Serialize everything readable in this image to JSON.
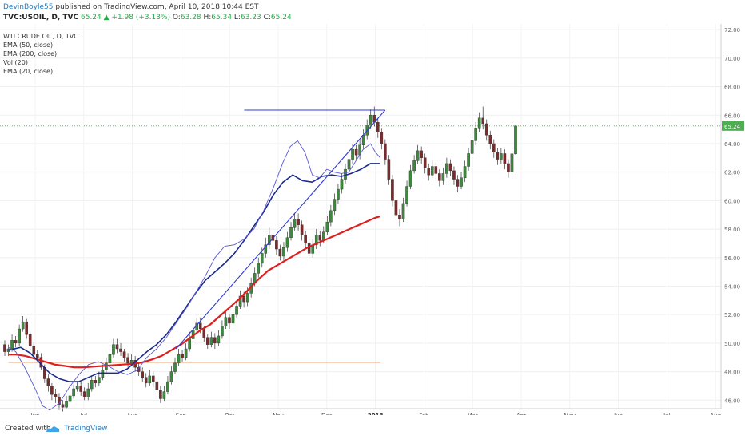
{
  "header": {
    "author": "DevinBoyle55",
    "published": " published on TradingView.com, April 10, 2018 10:44 EST",
    "symbol": "TVC:USOIL, D, TVC",
    "price": " 65.24",
    "change": " ▲ +1.98 (+3.13%)",
    "o_label": " O:",
    "o_value": "63.28",
    "h_label": " H:",
    "h_value": "65.34",
    "l_label": " L:",
    "l_value": "63.23",
    "c_label": " C:",
    "c_value": "65.24"
  },
  "legend": {
    "title": "WTI CRUDE OIL, D, TVC",
    "items": [
      "EMA (50, close)",
      "EMA (200, close)",
      "Vol (20)",
      "EMA (20, close)"
    ]
  },
  "footer": {
    "created": "Created with",
    "brand": "TradingView"
  },
  "colors": {
    "up": "#3c8b3c",
    "down": "#7a2b2b",
    "ema20": "#5a5ad0",
    "ema50": "#1a2b8c",
    "ema200": "#dd1f1f",
    "trend": "#2f3bd6",
    "horizontal_orange": "#f0a070",
    "price_label": "#4caf50"
  },
  "chart_data": {
    "type": "candlestick",
    "title": "WTI CRUDE OIL, D, TVC",
    "x_labels": [
      "Jun",
      "Jul",
      "Aug",
      "Sep",
      "Oct",
      "Nov",
      "Dec",
      "2018",
      "Feb",
      "Mar",
      "Apr",
      "May",
      "Jun",
      "Jul",
      "Aug"
    ],
    "y_labels": [
      "72.00",
      "70.00",
      "68.00",
      "66.00",
      "64.00",
      "62.00",
      "60.00",
      "58.00",
      "56.00",
      "54.00",
      "52.00",
      "50.00",
      "48.00",
      "46.00"
    ],
    "ylim": [
      45.4,
      72.4
    ],
    "last_price": "65.24",
    "ema20": [
      [
        -0.55,
        49.7
      ],
      [
        -0.4,
        49.4
      ],
      [
        -0.2,
        48.2
      ],
      [
        0.0,
        46.8
      ],
      [
        0.15,
        45.6
      ],
      [
        0.3,
        45.3
      ],
      [
        0.5,
        45.8
      ],
      [
        0.7,
        46.9
      ],
      [
        0.9,
        47.8
      ],
      [
        1.1,
        48.5
      ],
      [
        1.3,
        48.7
      ],
      [
        1.5,
        48.4
      ],
      [
        1.7,
        48.0
      ],
      [
        1.9,
        47.8
      ],
      [
        2.1,
        48.1
      ],
      [
        2.3,
        49.0
      ],
      [
        2.5,
        49.6
      ],
      [
        2.7,
        50.4
      ],
      [
        2.9,
        51.4
      ],
      [
        3.1,
        52.4
      ],
      [
        3.3,
        53.5
      ],
      [
        3.5,
        54.7
      ],
      [
        3.7,
        56.0
      ],
      [
        3.9,
        56.8
      ],
      [
        4.1,
        56.9
      ],
      [
        4.3,
        57.3
      ],
      [
        4.5,
        58.0
      ],
      [
        4.7,
        59.3
      ],
      [
        4.9,
        60.9
      ],
      [
        5.1,
        62.7
      ],
      [
        5.25,
        63.8
      ],
      [
        5.4,
        64.2
      ],
      [
        5.55,
        63.4
      ],
      [
        5.7,
        61.8
      ],
      [
        5.85,
        61.6
      ],
      [
        6.0,
        62.2
      ],
      [
        6.15,
        62.0
      ],
      [
        6.3,
        61.9
      ],
      [
        6.45,
        62.0
      ],
      [
        6.6,
        62.8
      ],
      [
        6.75,
        63.6
      ],
      [
        6.9,
        64.0
      ],
      [
        7.0,
        63.4
      ],
      [
        7.1,
        63.0
      ]
    ],
    "ema50": [
      [
        -0.55,
        49.5
      ],
      [
        -0.3,
        49.7
      ],
      [
        -0.1,
        49.3
      ],
      [
        0.1,
        48.6
      ],
      [
        0.3,
        47.9
      ],
      [
        0.5,
        47.5
      ],
      [
        0.7,
        47.3
      ],
      [
        0.9,
        47.3
      ],
      [
        1.1,
        47.6
      ],
      [
        1.3,
        47.9
      ],
      [
        1.5,
        47.9
      ],
      [
        1.7,
        47.9
      ],
      [
        1.9,
        48.2
      ],
      [
        2.1,
        48.8
      ],
      [
        2.3,
        49.4
      ],
      [
        2.5,
        49.9
      ],
      [
        2.7,
        50.6
      ],
      [
        2.9,
        51.5
      ],
      [
        3.1,
        52.5
      ],
      [
        3.3,
        53.5
      ],
      [
        3.5,
        54.4
      ],
      [
        3.7,
        55.0
      ],
      [
        3.9,
        55.6
      ],
      [
        4.1,
        56.3
      ],
      [
        4.3,
        57.2
      ],
      [
        4.5,
        58.2
      ],
      [
        4.7,
        59.2
      ],
      [
        4.9,
        60.4
      ],
      [
        5.1,
        61.3
      ],
      [
        5.3,
        61.8
      ],
      [
        5.5,
        61.4
      ],
      [
        5.7,
        61.3
      ],
      [
        5.9,
        61.7
      ],
      [
        6.1,
        61.8
      ],
      [
        6.3,
        61.7
      ],
      [
        6.5,
        61.9
      ],
      [
        6.7,
        62.2
      ],
      [
        6.9,
        62.6
      ],
      [
        7.1,
        62.6
      ]
    ],
    "ema200": [
      [
        -0.55,
        49.2
      ],
      [
        -0.4,
        49.2
      ],
      [
        -0.2,
        49.1
      ],
      [
        0.0,
        48.9
      ],
      [
        0.2,
        48.7
      ],
      [
        0.4,
        48.5
      ],
      [
        0.6,
        48.4
      ],
      [
        0.8,
        48.3
      ],
      [
        1.0,
        48.3
      ],
      [
        1.2,
        48.35
      ],
      [
        1.4,
        48.4
      ],
      [
        1.6,
        48.45
      ],
      [
        1.8,
        48.5
      ],
      [
        2.0,
        48.55
      ],
      [
        2.2,
        48.65
      ],
      [
        2.4,
        48.85
      ],
      [
        2.6,
        49.1
      ],
      [
        2.8,
        49.5
      ],
      [
        3.0,
        49.9
      ],
      [
        3.2,
        50.4
      ],
      [
        3.4,
        50.9
      ],
      [
        3.6,
        51.3
      ],
      [
        3.8,
        51.9
      ],
      [
        4.0,
        52.5
      ],
      [
        4.2,
        53.1
      ],
      [
        4.4,
        53.8
      ],
      [
        4.6,
        54.5
      ],
      [
        4.8,
        55.1
      ],
      [
        5.0,
        55.5
      ],
      [
        5.2,
        55.9
      ],
      [
        5.4,
        56.3
      ],
      [
        5.6,
        56.7
      ],
      [
        5.8,
        57.0
      ],
      [
        6.0,
        57.3
      ],
      [
        6.2,
        57.6
      ],
      [
        6.4,
        57.9
      ],
      [
        6.6,
        58.2
      ],
      [
        6.8,
        58.5
      ],
      [
        7.0,
        58.8
      ],
      [
        7.1,
        58.9
      ]
    ],
    "lines": [
      {
        "name": "horizontal-resistance",
        "from": [
          4.3,
          66.35
        ],
        "to": [
          7.2,
          66.35
        ]
      },
      {
        "name": "ascending-support",
        "from": [
          2.9,
          49.6
        ],
        "to": [
          7.2,
          66.35
        ]
      },
      {
        "name": "horizontal-support-orange",
        "from": [
          -0.55,
          48.65
        ],
        "to": [
          7.1,
          48.65
        ]
      }
    ],
    "candles": [
      [
        49.9,
        49.4,
        50.2,
        49.1
      ],
      [
        49.4,
        49.6,
        49.9,
        49.1
      ],
      [
        49.6,
        50.2,
        50.6,
        49.4
      ],
      [
        50.2,
        50.0,
        50.5,
        49.7
      ],
      [
        50.0,
        51.0,
        51.3,
        49.8
      ],
      [
        51.0,
        51.5,
        51.9,
        50.8
      ],
      [
        51.5,
        50.6,
        51.7,
        50.3
      ],
      [
        50.6,
        49.8,
        50.8,
        49.5
      ],
      [
        49.8,
        49.2,
        50.1,
        49.0
      ],
      [
        49.2,
        49.0,
        49.5,
        48.7
      ],
      [
        49.0,
        48.3,
        49.3,
        48.1
      ],
      [
        48.3,
        47.5,
        48.5,
        47.2
      ],
      [
        47.5,
        47.0,
        47.8,
        46.6
      ],
      [
        47.0,
        46.4,
        47.2,
        46.0
      ],
      [
        46.4,
        46.2,
        46.8,
        45.8
      ],
      [
        46.2,
        45.7,
        46.5,
        45.3
      ],
      [
        45.7,
        45.5,
        46.0,
        45.2
      ],
      [
        45.5,
        45.9,
        46.3,
        45.4
      ],
      [
        45.9,
        46.3,
        46.6,
        45.7
      ],
      [
        46.3,
        46.8,
        47.1,
        46.1
      ],
      [
        46.8,
        47.0,
        47.3,
        46.6
      ],
      [
        47.0,
        46.6,
        47.3,
        46.3
      ],
      [
        46.6,
        46.2,
        46.9,
        46.0
      ],
      [
        46.2,
        46.8,
        47.2,
        46.0
      ],
      [
        46.8,
        47.4,
        47.7,
        46.6
      ],
      [
        47.4,
        47.2,
        47.7,
        46.9
      ],
      [
        47.2,
        47.6,
        48.0,
        47.0
      ],
      [
        47.6,
        48.1,
        48.5,
        47.4
      ],
      [
        48.1,
        48.6,
        49.0,
        47.9
      ],
      [
        48.6,
        49.2,
        49.6,
        48.3
      ],
      [
        49.2,
        49.9,
        50.3,
        49.0
      ],
      [
        49.9,
        49.6,
        50.3,
        49.3
      ],
      [
        49.6,
        49.4,
        50.0,
        49.1
      ],
      [
        49.4,
        49.0,
        49.6,
        48.7
      ],
      [
        49.0,
        48.6,
        49.3,
        48.3
      ],
      [
        48.6,
        48.8,
        49.2,
        48.4
      ],
      [
        48.8,
        48.3,
        49.1,
        48.0
      ],
      [
        48.3,
        48.0,
        48.6,
        47.7
      ],
      [
        48.0,
        47.6,
        48.3,
        47.3
      ],
      [
        47.6,
        47.2,
        47.9,
        46.9
      ],
      [
        47.2,
        47.7,
        48.1,
        47.0
      ],
      [
        47.7,
        47.3,
        48.0,
        46.9
      ],
      [
        47.3,
        46.7,
        47.5,
        46.3
      ],
      [
        46.7,
        46.1,
        47.0,
        45.8
      ],
      [
        46.1,
        46.6,
        47.0,
        45.9
      ],
      [
        46.6,
        47.3,
        47.7,
        46.4
      ],
      [
        47.3,
        48.0,
        48.4,
        47.1
      ],
      [
        48.0,
        48.6,
        49.0,
        47.8
      ],
      [
        48.6,
        49.2,
        49.6,
        48.4
      ],
      [
        49.2,
        49.0,
        49.5,
        48.7
      ],
      [
        49.0,
        49.6,
        50.0,
        48.8
      ],
      [
        49.6,
        50.3,
        50.8,
        49.4
      ],
      [
        50.3,
        50.9,
        51.3,
        50.0
      ],
      [
        50.9,
        51.4,
        51.8,
        50.6
      ],
      [
        51.4,
        51.0,
        51.8,
        50.7
      ],
      [
        51.0,
        50.4,
        51.2,
        50.1
      ],
      [
        50.4,
        49.9,
        50.6,
        49.6
      ],
      [
        49.9,
        50.4,
        50.8,
        49.7
      ],
      [
        50.4,
        50.0,
        50.7,
        49.6
      ],
      [
        50.0,
        50.5,
        50.9,
        49.8
      ],
      [
        50.5,
        51.2,
        51.6,
        50.3
      ],
      [
        51.2,
        51.8,
        52.2,
        51.0
      ],
      [
        51.8,
        51.4,
        52.0,
        51.0
      ],
      [
        51.4,
        52.0,
        52.4,
        51.2
      ],
      [
        52.0,
        52.6,
        53.0,
        51.8
      ],
      [
        52.6,
        53.3,
        53.7,
        52.4
      ],
      [
        53.3,
        52.9,
        53.6,
        52.5
      ],
      [
        52.9,
        53.5,
        53.9,
        52.6
      ],
      [
        53.5,
        54.2,
        54.6,
        53.2
      ],
      [
        54.2,
        54.9,
        55.3,
        54.0
      ],
      [
        54.9,
        55.6,
        56.0,
        54.6
      ],
      [
        55.6,
        56.3,
        56.7,
        55.3
      ],
      [
        56.3,
        56.9,
        57.4,
        56.0
      ],
      [
        56.9,
        57.6,
        58.1,
        56.6
      ],
      [
        57.6,
        57.2,
        57.9,
        56.8
      ],
      [
        57.2,
        56.6,
        57.5,
        56.2
      ],
      [
        56.6,
        56.1,
        56.9,
        55.8
      ],
      [
        56.1,
        56.7,
        57.1,
        55.8
      ],
      [
        56.7,
        57.4,
        57.8,
        56.4
      ],
      [
        57.4,
        58.1,
        58.5,
        57.2
      ],
      [
        58.1,
        58.7,
        59.1,
        57.9
      ],
      [
        58.7,
        58.3,
        59.1,
        57.9
      ],
      [
        58.3,
        57.6,
        58.6,
        57.2
      ],
      [
        57.6,
        57.0,
        57.9,
        56.6
      ],
      [
        57.0,
        56.3,
        57.3,
        55.9
      ],
      [
        56.3,
        56.9,
        57.3,
        56.0
      ],
      [
        56.9,
        57.6,
        58.0,
        56.6
      ],
      [
        57.6,
        57.2,
        57.9,
        56.8
      ],
      [
        57.2,
        57.8,
        58.2,
        57.0
      ],
      [
        57.8,
        58.5,
        58.9,
        57.6
      ],
      [
        58.5,
        59.3,
        59.7,
        58.2
      ],
      [
        59.3,
        60.1,
        60.5,
        59.0
      ],
      [
        60.1,
        60.8,
        61.2,
        59.8
      ],
      [
        60.8,
        61.5,
        61.9,
        60.5
      ],
      [
        61.5,
        62.2,
        62.6,
        61.2
      ],
      [
        62.2,
        62.9,
        63.3,
        61.9
      ],
      [
        62.9,
        63.6,
        64.0,
        62.6
      ],
      [
        63.6,
        63.2,
        63.9,
        62.8
      ],
      [
        63.2,
        63.9,
        64.3,
        62.9
      ],
      [
        63.9,
        64.6,
        65.0,
        63.6
      ],
      [
        64.6,
        65.3,
        65.7,
        64.3
      ],
      [
        65.3,
        66.0,
        66.4,
        65.0
      ],
      [
        66.0,
        65.5,
        66.6,
        65.2
      ],
      [
        65.5,
        64.8,
        65.8,
        64.4
      ],
      [
        64.8,
        64.0,
        65.1,
        63.6
      ],
      [
        64.0,
        62.9,
        64.3,
        62.5
      ],
      [
        62.9,
        61.5,
        63.2,
        61.1
      ],
      [
        61.5,
        60.0,
        61.8,
        59.6
      ],
      [
        60.0,
        59.0,
        60.3,
        58.6
      ],
      [
        59.0,
        58.7,
        59.4,
        58.2
      ],
      [
        58.7,
        59.8,
        60.2,
        58.5
      ],
      [
        59.8,
        61.0,
        61.4,
        59.6
      ],
      [
        61.0,
        62.1,
        62.5,
        60.8
      ],
      [
        62.1,
        62.8,
        63.2,
        61.9
      ],
      [
        62.8,
        63.5,
        63.9,
        62.6
      ],
      [
        63.5,
        63.0,
        63.8,
        62.6
      ],
      [
        63.0,
        62.3,
        63.3,
        61.9
      ],
      [
        62.3,
        61.8,
        62.6,
        61.4
      ],
      [
        61.8,
        62.4,
        62.8,
        61.6
      ],
      [
        62.4,
        61.9,
        62.7,
        61.5
      ],
      [
        61.9,
        61.4,
        62.2,
        61.0
      ],
      [
        61.4,
        61.9,
        62.3,
        61.1
      ],
      [
        61.9,
        62.6,
        63.0,
        61.6
      ],
      [
        62.6,
        62.1,
        62.9,
        61.7
      ],
      [
        62.1,
        61.5,
        62.4,
        61.1
      ],
      [
        61.5,
        61.0,
        61.8,
        60.6
      ],
      [
        61.0,
        61.6,
        62.0,
        60.8
      ],
      [
        61.6,
        62.4,
        62.8,
        61.3
      ],
      [
        62.4,
        63.3,
        63.7,
        62.1
      ],
      [
        63.3,
        64.2,
        64.6,
        63.0
      ],
      [
        64.2,
        65.1,
        65.5,
        63.9
      ],
      [
        65.1,
        65.8,
        66.2,
        64.8
      ],
      [
        65.8,
        65.4,
        66.6,
        65.0
      ],
      [
        65.4,
        64.6,
        65.7,
        64.2
      ],
      [
        64.6,
        64.0,
        64.9,
        63.6
      ],
      [
        64.0,
        63.4,
        64.3,
        63.0
      ],
      [
        63.4,
        62.9,
        63.7,
        62.5
      ],
      [
        62.9,
        63.3,
        63.7,
        62.6
      ],
      [
        63.3,
        62.6,
        63.6,
        62.2
      ],
      [
        62.6,
        62.0,
        62.9,
        61.6
      ],
      [
        62.0,
        63.28,
        63.5,
        61.8
      ],
      [
        63.28,
        65.24,
        65.34,
        63.23
      ]
    ]
  }
}
